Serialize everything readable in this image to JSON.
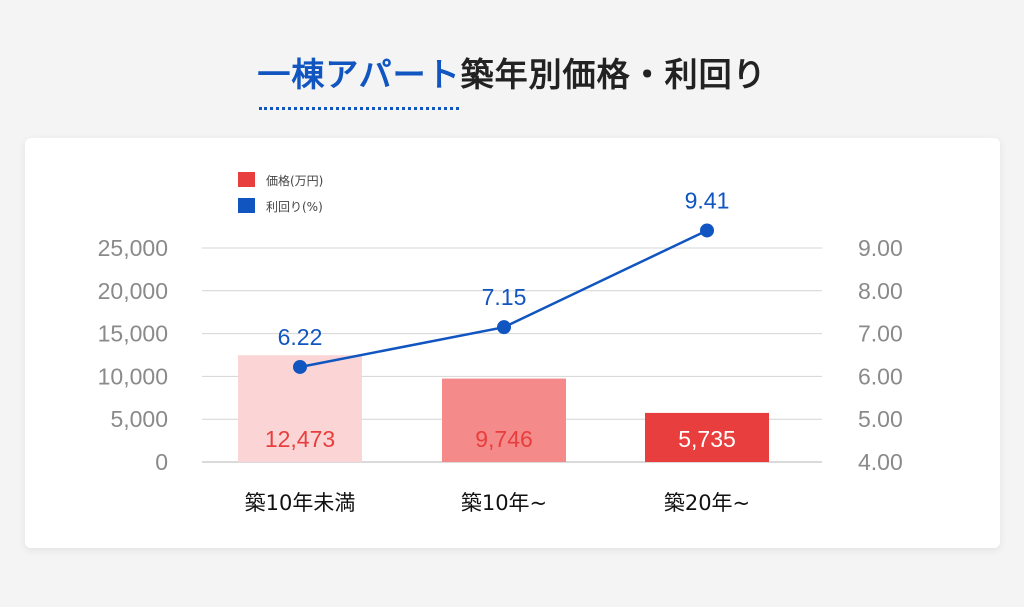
{
  "title": {
    "accent": "一棟アパート",
    "rest": "築年別価格・利回り"
  },
  "colors": {
    "accent": "#1055c0",
    "bars": [
      "#fbd5d5",
      "#f48a8a",
      "#e83e3e"
    ],
    "bar_labels": [
      "#e83e3e",
      "#e83e3e",
      "#ffffff"
    ]
  },
  "chart_data": {
    "type": "bar",
    "categories": [
      "築10年未満",
      "築10年~",
      "築20年~"
    ],
    "series": [
      {
        "name": "価格(万円)",
        "type": "bar",
        "axis": "left",
        "values": [
          12473,
          9746,
          5735
        ],
        "labels": [
          "12,473",
          "9,746",
          "5,735"
        ]
      },
      {
        "name": "利回り(%)",
        "type": "line",
        "axis": "right",
        "values": [
          6.22,
          7.15,
          9.41
        ],
        "labels": [
          "6.22",
          "7.15",
          "9.41"
        ]
      }
    ],
    "y_left": {
      "ylim": [
        0,
        25000
      ],
      "ticks": [
        "0",
        "5,000",
        "10,000",
        "15,000",
        "20,000",
        "25,000"
      ]
    },
    "y_right": {
      "ylim": [
        4.0,
        9.0
      ],
      "ticks": [
        "4.00",
        "5.00",
        "6.00",
        "7.00",
        "8.00",
        "9.00"
      ]
    },
    "legend": {
      "position": "top-left",
      "entries": [
        "価格(万円)",
        "利回り(%)"
      ]
    },
    "grid": true
  }
}
